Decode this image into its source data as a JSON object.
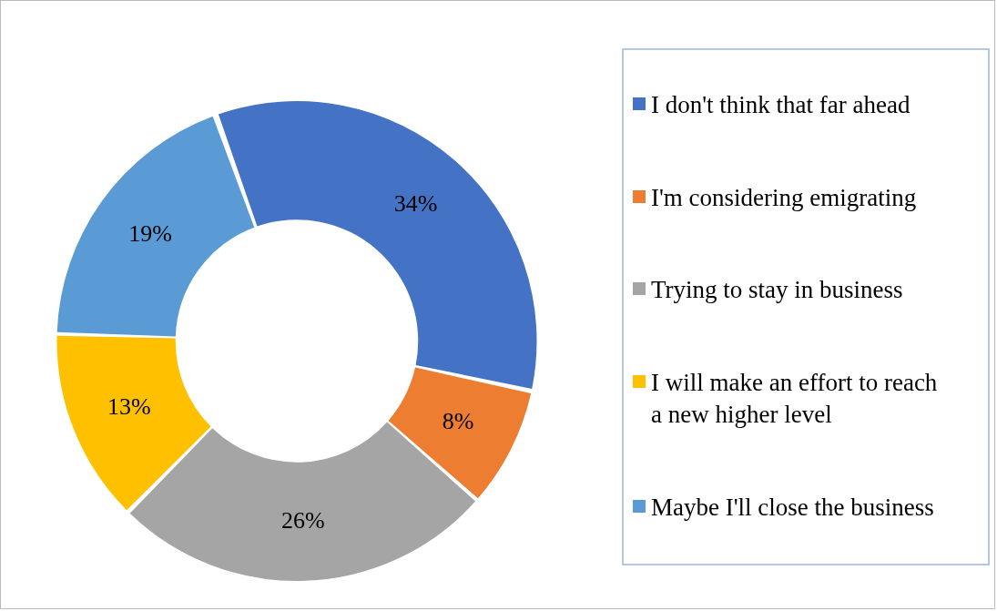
{
  "chart_data": {
    "type": "donut",
    "categories": [
      "I don't think that far ahead",
      "I'm considering emigrating",
      "Trying to stay in business",
      "I will make an effort to reach a new higher level",
      "Maybe I'll close the business"
    ],
    "values": [
      34,
      8,
      26,
      13,
      19
    ],
    "colors": [
      "#4472c4",
      "#ed7d31",
      "#a5a5a5",
      "#ffc000",
      "#5b9bd5"
    ],
    "value_labels": [
      "34%",
      "8%",
      "26%",
      "13%",
      "19%"
    ],
    "legend": "right"
  }
}
